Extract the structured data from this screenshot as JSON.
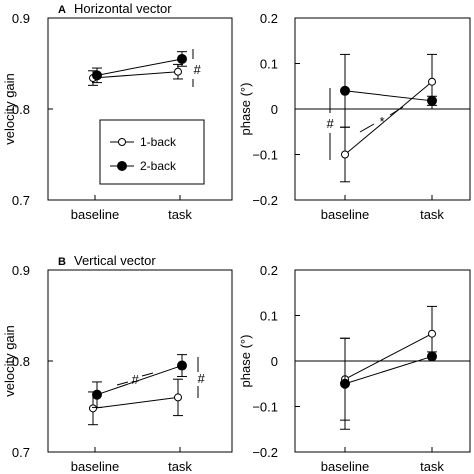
{
  "chart_data": [
    {
      "type": "line",
      "panel": "A",
      "title": "Horizontal vector",
      "ylabel": "velocity gain",
      "categories": [
        "baseline",
        "task"
      ],
      "ylim": [
        0.7,
        0.9
      ],
      "yticks": [
        "0.7",
        "0.8",
        "0.9"
      ],
      "series": [
        {
          "name": "1-back",
          "marker": "open-circle",
          "values": [
            0.834,
            0.841
          ],
          "errors": [
            0.008,
            0.008
          ]
        },
        {
          "name": "2-back",
          "marker": "filled-circle",
          "values": [
            0.837,
            0.855
          ],
          "errors": [
            0.008,
            0.008
          ]
        }
      ],
      "annotations": [
        {
          "text": "#",
          "location": "task"
        }
      ],
      "legend": {
        "entries": [
          "1-back",
          "2-back"
        ],
        "placement": "bottom-right"
      }
    },
    {
      "type": "line",
      "panel": "A-right",
      "ylabel": "phase (°)",
      "categories": [
        "baseline",
        "task"
      ],
      "ylim": [
        -0.2,
        0.2
      ],
      "yticks": [
        "−0.2",
        "−0.1",
        "0",
        "0.1",
        "0.2"
      ],
      "zero_line": true,
      "series": [
        {
          "name": "1-back",
          "marker": "open-circle",
          "values": [
            -0.1,
            0.06
          ],
          "errors": [
            0.06,
            0.06
          ]
        },
        {
          "name": "2-back",
          "marker": "filled-circle",
          "values": [
            0.04,
            0.018
          ],
          "errors": [
            0.08,
            0.01
          ]
        }
      ],
      "annotations": [
        {
          "text": "#",
          "location": "baseline"
        },
        {
          "text": "*",
          "location": "between"
        }
      ]
    },
    {
      "type": "line",
      "panel": "B",
      "title": "Vertical vector",
      "ylabel": "velocity gain",
      "categories": [
        "baseline",
        "task"
      ],
      "ylim": [
        0.7,
        0.9
      ],
      "yticks": [
        "0.7",
        "0.8",
        "0.9"
      ],
      "series": [
        {
          "name": "1-back",
          "marker": "open-circle",
          "values": [
            0.748,
            0.76
          ],
          "errors": [
            0.018,
            0.02
          ]
        },
        {
          "name": "2-back",
          "marker": "filled-circle",
          "values": [
            0.763,
            0.795
          ],
          "errors": [
            0.014,
            0.012
          ]
        }
      ],
      "annotations": [
        {
          "text": "#",
          "location": "between"
        },
        {
          "text": "#",
          "location": "task"
        }
      ]
    },
    {
      "type": "line",
      "panel": "B-right",
      "ylabel": "phase (°)",
      "categories": [
        "baseline",
        "task"
      ],
      "ylim": [
        -0.2,
        0.2
      ],
      "yticks": [
        "−0.2",
        "−0.1",
        "0",
        "0.1",
        "0.2"
      ],
      "zero_line": true,
      "series": [
        {
          "name": "1-back",
          "marker": "open-circle",
          "values": [
            -0.04,
            0.06
          ],
          "errors": [
            0.09,
            0.06
          ]
        },
        {
          "name": "2-back",
          "marker": "filled-circle",
          "values": [
            -0.05,
            0.01
          ],
          "errors": [
            0.1,
            0.01
          ]
        }
      ]
    }
  ]
}
